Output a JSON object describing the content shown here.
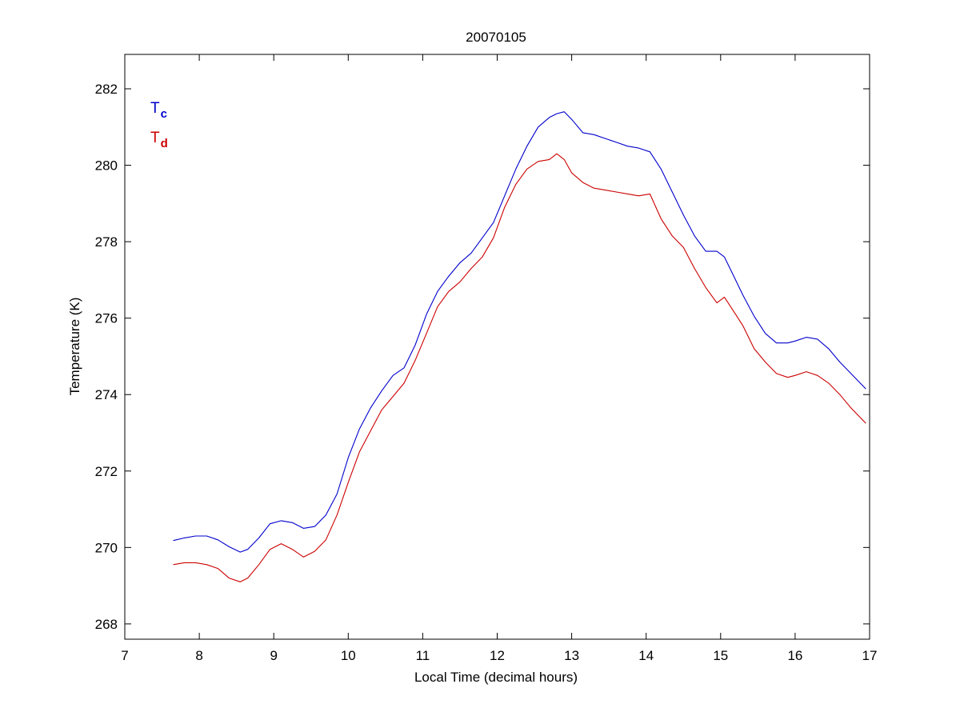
{
  "chart_data": {
    "type": "line",
    "title": "20070105",
    "xlabel": "Local Time (decimal hours)",
    "ylabel": "Temperature (K)",
    "xlim": [
      7,
      17
    ],
    "ylim": [
      267.6,
      282.9
    ],
    "xticks": [
      7,
      8,
      9,
      10,
      11,
      12,
      13,
      14,
      15,
      16,
      17
    ],
    "yticks": [
      268,
      270,
      272,
      274,
      276,
      278,
      280,
      282
    ],
    "grid": false,
    "legend_position": "top-left",
    "series": [
      {
        "name": "T",
        "name_subscript": "c",
        "color": "#0000cc",
        "x": [
          7.65,
          7.8,
          7.95,
          8.1,
          8.25,
          8.4,
          8.55,
          8.65,
          8.8,
          8.95,
          9.1,
          9.25,
          9.4,
          9.55,
          9.7,
          9.85,
          10.0,
          10.15,
          10.3,
          10.45,
          10.6,
          10.75,
          10.9,
          11.05,
          11.2,
          11.35,
          11.5,
          11.65,
          11.8,
          11.95,
          12.1,
          12.25,
          12.4,
          12.55,
          12.7,
          12.8,
          12.9,
          13.0,
          13.15,
          13.3,
          13.45,
          13.6,
          13.75,
          13.9,
          14.05,
          14.2,
          14.35,
          14.5,
          14.65,
          14.8,
          14.95,
          15.05,
          15.15,
          15.3,
          15.45,
          15.6,
          15.75,
          15.9,
          16.0,
          16.15,
          16.3,
          16.45,
          16.6,
          16.75,
          16.95
        ],
        "y": [
          270.18,
          270.25,
          270.3,
          270.3,
          270.2,
          270.02,
          269.88,
          269.95,
          270.25,
          270.62,
          270.7,
          270.65,
          270.5,
          270.55,
          270.85,
          271.4,
          272.35,
          273.1,
          273.65,
          274.1,
          274.5,
          274.7,
          275.3,
          276.1,
          276.7,
          277.1,
          277.45,
          277.7,
          278.1,
          278.5,
          279.2,
          279.9,
          280.5,
          281.0,
          281.25,
          281.35,
          281.4,
          281.2,
          280.85,
          280.8,
          280.7,
          280.6,
          280.5,
          280.45,
          280.35,
          279.9,
          279.3,
          278.7,
          278.15,
          277.75,
          277.75,
          277.6,
          277.2,
          276.6,
          276.05,
          275.6,
          275.35,
          275.35,
          275.4,
          275.5,
          275.45,
          275.2,
          274.85,
          274.55,
          274.15
        ]
      },
      {
        "name": "T",
        "name_subscript": "d",
        "color": "#cc0000",
        "x": [
          7.65,
          7.8,
          7.95,
          8.1,
          8.25,
          8.4,
          8.55,
          8.65,
          8.8,
          8.95,
          9.1,
          9.25,
          9.4,
          9.55,
          9.7,
          9.85,
          10.0,
          10.15,
          10.3,
          10.45,
          10.6,
          10.75,
          10.9,
          11.05,
          11.2,
          11.35,
          11.5,
          11.65,
          11.8,
          11.95,
          12.1,
          12.25,
          12.4,
          12.55,
          12.7,
          12.8,
          12.9,
          13.0,
          13.15,
          13.3,
          13.45,
          13.6,
          13.75,
          13.9,
          14.05,
          14.2,
          14.35,
          14.5,
          14.65,
          14.8,
          14.95,
          15.05,
          15.15,
          15.3,
          15.45,
          15.6,
          15.75,
          15.9,
          16.0,
          16.15,
          16.3,
          16.45,
          16.6,
          16.75,
          16.95
        ],
        "y": [
          269.55,
          269.6,
          269.6,
          269.55,
          269.45,
          269.2,
          269.1,
          269.2,
          269.55,
          269.95,
          270.1,
          269.95,
          269.75,
          269.9,
          270.2,
          270.85,
          271.7,
          272.5,
          273.05,
          273.6,
          273.95,
          274.3,
          274.9,
          275.6,
          276.3,
          276.7,
          276.95,
          277.3,
          277.6,
          278.1,
          278.9,
          279.5,
          279.9,
          280.1,
          280.15,
          280.3,
          280.15,
          279.8,
          279.55,
          279.4,
          279.35,
          279.3,
          279.25,
          279.2,
          279.25,
          278.6,
          278.15,
          277.85,
          277.3,
          276.8,
          276.4,
          276.55,
          276.25,
          275.8,
          275.2,
          274.85,
          274.55,
          274.45,
          274.5,
          274.6,
          274.5,
          274.3,
          274.0,
          273.65,
          273.25
        ]
      }
    ]
  }
}
